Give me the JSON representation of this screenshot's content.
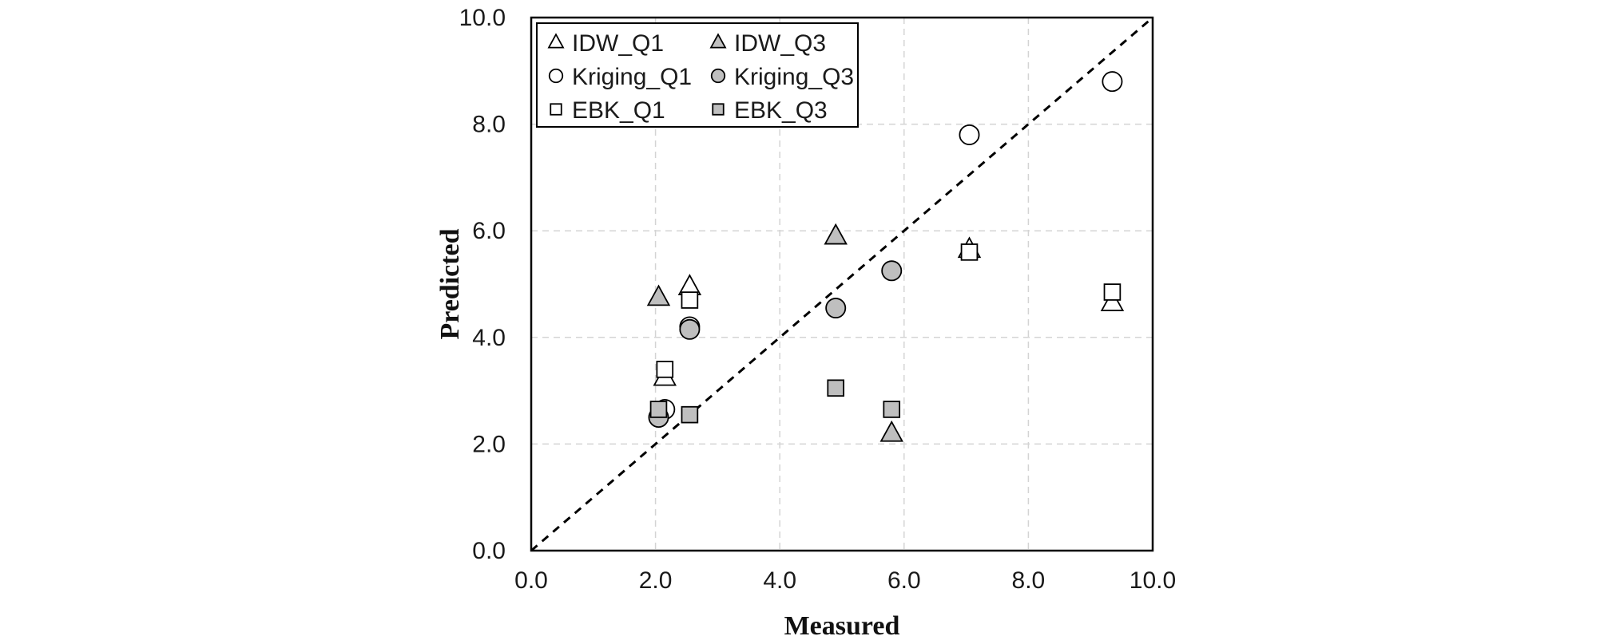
{
  "chart_data": {
    "type": "scatter",
    "title": "",
    "xlabel": "Measured",
    "ylabel": "Predicted",
    "xlim": [
      0,
      10
    ],
    "ylim": [
      0,
      10
    ],
    "x_ticks": [
      "0.0",
      "2.0",
      "4.0",
      "6.0",
      "8.0",
      "10.0"
    ],
    "y_ticks": [
      "0.0",
      "2.0",
      "4.0",
      "6.0",
      "8.0",
      "10.0"
    ],
    "grid": true,
    "legend_position": "top-left",
    "reference_line": {
      "type": "1:1",
      "style": "dashed"
    },
    "series": [
      {
        "name": "IDW_Q1",
        "marker": "triangle",
        "fill": "#ffffff",
        "points": [
          [
            2.15,
            3.25
          ],
          [
            2.55,
            4.95
          ],
          [
            7.05,
            5.65
          ],
          [
            9.35,
            4.65
          ]
        ]
      },
      {
        "name": "IDW_Q3",
        "marker": "triangle",
        "fill": "#bfbfbf",
        "points": [
          [
            2.05,
            4.75
          ],
          [
            4.9,
            5.9
          ],
          [
            5.8,
            2.2
          ]
        ]
      },
      {
        "name": "Kriging_Q1",
        "marker": "circle",
        "fill": "#ffffff",
        "points": [
          [
            2.15,
            2.65
          ],
          [
            2.55,
            4.2
          ],
          [
            7.05,
            7.8
          ],
          [
            9.35,
            8.8
          ]
        ]
      },
      {
        "name": "Kriging_Q3",
        "marker": "circle",
        "fill": "#bfbfbf",
        "points": [
          [
            2.05,
            2.5
          ],
          [
            2.55,
            4.15
          ],
          [
            4.9,
            4.55
          ],
          [
            5.8,
            5.25
          ]
        ]
      },
      {
        "name": "EBK_Q1",
        "marker": "square",
        "fill": "#ffffff",
        "points": [
          [
            2.15,
            3.4
          ],
          [
            2.55,
            4.7
          ],
          [
            7.05,
            5.6
          ],
          [
            9.35,
            4.85
          ]
        ]
      },
      {
        "name": "EBK_Q3",
        "marker": "square",
        "fill": "#bfbfbf",
        "points": [
          [
            2.05,
            2.65
          ],
          [
            2.55,
            2.55
          ],
          [
            4.9,
            3.05
          ],
          [
            5.8,
            2.65
          ]
        ]
      }
    ]
  }
}
